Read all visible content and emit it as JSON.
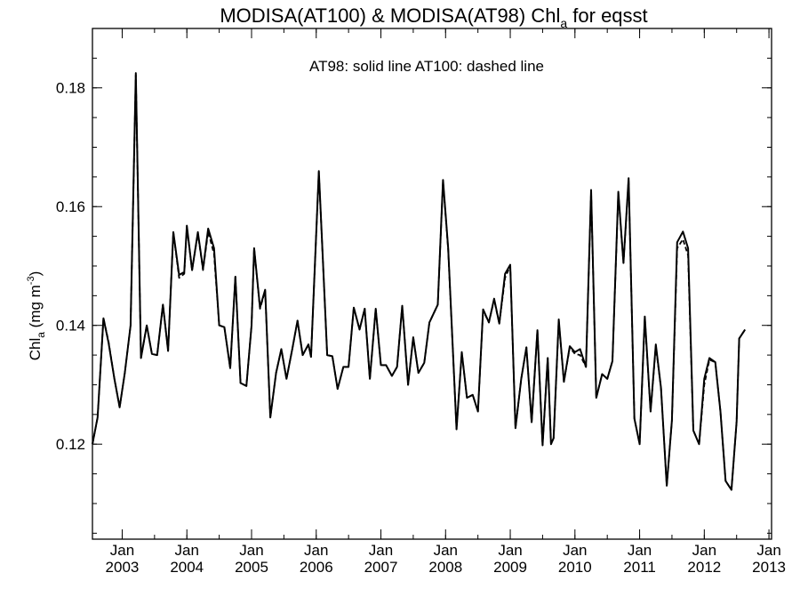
{
  "chart_data": {
    "type": "line",
    "title": {
      "prefix": "MODISA(AT100) & MODISA(AT98)  Chl",
      "sub": "a",
      "suffix": " for eqsst"
    },
    "annotation": "AT98: solid line   AT100: dashed line",
    "ylabel": {
      "main": "Chl",
      "sub": "a",
      "unit": " (mg m",
      "sup": "-3",
      "close": ")"
    },
    "xlabel": "",
    "xlim": [
      2002.54,
      2013.04
    ],
    "ylim": [
      0.104,
      0.19
    ],
    "yticks": [
      0.12,
      0.14,
      0.16,
      0.18
    ],
    "ytick_labels": [
      "0.12",
      "0.14",
      "0.16",
      "0.18"
    ],
    "yminor_step": 0.005,
    "xticks": [
      {
        "x": 2003.0,
        "month": "Jan",
        "year": "2003"
      },
      {
        "x": 2004.0,
        "month": "Jan",
        "year": "2004"
      },
      {
        "x": 2005.0,
        "month": "Jan",
        "year": "2005"
      },
      {
        "x": 2006.0,
        "month": "Jan",
        "year": "2006"
      },
      {
        "x": 2007.0,
        "month": "Jan",
        "year": "2007"
      },
      {
        "x": 2008.0,
        "month": "Jan",
        "year": "2008"
      },
      {
        "x": 2009.0,
        "month": "Jan",
        "year": "2009"
      },
      {
        "x": 2010.0,
        "month": "Jan",
        "year": "2010"
      },
      {
        "x": 2011.0,
        "month": "Jan",
        "year": "2011"
      },
      {
        "x": 2012.0,
        "month": "Jan",
        "year": "2012"
      },
      {
        "x": 2013.0,
        "month": "Jan",
        "year": "2013"
      }
    ],
    "xminor_step": 0.5,
    "series": [
      {
        "name": "AT98",
        "style": "solid",
        "color": "#000000",
        "points": [
          [
            2002.54,
            0.12
          ],
          [
            2002.62,
            0.1245
          ],
          [
            2002.71,
            0.1412
          ],
          [
            2002.79,
            0.137
          ],
          [
            2002.88,
            0.131
          ],
          [
            2002.96,
            0.1262
          ],
          [
            2003.04,
            0.132
          ],
          [
            2003.13,
            0.14
          ],
          [
            2003.21,
            0.1825
          ],
          [
            2003.29,
            0.1345
          ],
          [
            2003.38,
            0.14
          ],
          [
            2003.46,
            0.1352
          ],
          [
            2003.54,
            0.135
          ],
          [
            2003.63,
            0.1435
          ],
          [
            2003.71,
            0.1357
          ],
          [
            2003.79,
            0.1557
          ],
          [
            2003.88,
            0.1485
          ],
          [
            2003.96,
            0.149
          ],
          [
            2004.0,
            0.1568
          ],
          [
            2004.08,
            0.1493
          ],
          [
            2004.17,
            0.1557
          ],
          [
            2004.25,
            0.1495
          ],
          [
            2004.33,
            0.1563
          ],
          [
            2004.42,
            0.153
          ],
          [
            2004.5,
            0.14
          ],
          [
            2004.58,
            0.1397
          ],
          [
            2004.67,
            0.1328
          ],
          [
            2004.75,
            0.1482
          ],
          [
            2004.83,
            0.1303
          ],
          [
            2004.92,
            0.1298
          ],
          [
            2005.0,
            0.14
          ],
          [
            2005.04,
            0.153
          ],
          [
            2005.13,
            0.143
          ],
          [
            2005.21,
            0.146
          ],
          [
            2005.29,
            0.1245
          ],
          [
            2005.38,
            0.132
          ],
          [
            2005.46,
            0.136
          ],
          [
            2005.54,
            0.131
          ],
          [
            2005.63,
            0.136
          ],
          [
            2005.71,
            0.1408
          ],
          [
            2005.79,
            0.135
          ],
          [
            2005.88,
            0.1368
          ],
          [
            2005.92,
            0.1347
          ],
          [
            2006.04,
            0.166
          ],
          [
            2006.17,
            0.135
          ],
          [
            2006.25,
            0.1348
          ],
          [
            2006.33,
            0.1293
          ],
          [
            2006.42,
            0.133
          ],
          [
            2006.5,
            0.133
          ],
          [
            2006.58,
            0.143
          ],
          [
            2006.67,
            0.1393
          ],
          [
            2006.75,
            0.1428
          ],
          [
            2006.83,
            0.131
          ],
          [
            2006.92,
            0.1428
          ],
          [
            2007.0,
            0.1333
          ],
          [
            2007.08,
            0.1333
          ],
          [
            2007.17,
            0.1315
          ],
          [
            2007.25,
            0.133
          ],
          [
            2007.33,
            0.1433
          ],
          [
            2007.42,
            0.13
          ],
          [
            2007.5,
            0.138
          ],
          [
            2007.58,
            0.132
          ],
          [
            2007.67,
            0.1337
          ],
          [
            2007.75,
            0.1405
          ],
          [
            2007.88,
            0.1435
          ],
          [
            2007.96,
            0.1645
          ],
          [
            2008.04,
            0.153
          ],
          [
            2008.17,
            0.1225
          ],
          [
            2008.25,
            0.1355
          ],
          [
            2008.33,
            0.1278
          ],
          [
            2008.42,
            0.1283
          ],
          [
            2008.5,
            0.1255
          ],
          [
            2008.58,
            0.1427
          ],
          [
            2008.67,
            0.1405
          ],
          [
            2008.75,
            0.1445
          ],
          [
            2008.83,
            0.1403
          ],
          [
            2008.92,
            0.1487
          ],
          [
            2009.0,
            0.1502
          ],
          [
            2009.08,
            0.1227
          ],
          [
            2009.17,
            0.131
          ],
          [
            2009.25,
            0.1363
          ],
          [
            2009.33,
            0.1237
          ],
          [
            2009.42,
            0.1392
          ],
          [
            2009.5,
            0.1198
          ],
          [
            2009.58,
            0.1345
          ],
          [
            2009.63,
            0.12
          ],
          [
            2009.67,
            0.121
          ],
          [
            2009.75,
            0.141
          ],
          [
            2009.83,
            0.1305
          ],
          [
            2009.92,
            0.1365
          ],
          [
            2010.0,
            0.1355
          ],
          [
            2010.08,
            0.136
          ],
          [
            2010.17,
            0.133
          ],
          [
            2010.25,
            0.1628
          ],
          [
            2010.33,
            0.1278
          ],
          [
            2010.42,
            0.1318
          ],
          [
            2010.5,
            0.131
          ],
          [
            2010.58,
            0.134
          ],
          [
            2010.67,
            0.1625
          ],
          [
            2010.75,
            0.1505
          ],
          [
            2010.83,
            0.1648
          ],
          [
            2010.92,
            0.1243
          ],
          [
            2011.0,
            0.12
          ],
          [
            2011.08,
            0.1415
          ],
          [
            2011.17,
            0.1255
          ],
          [
            2011.25,
            0.1368
          ],
          [
            2011.33,
            0.1295
          ],
          [
            2011.42,
            0.113
          ],
          [
            2011.5,
            0.124
          ],
          [
            2011.58,
            0.154
          ],
          [
            2011.67,
            0.1558
          ],
          [
            2011.75,
            0.153
          ],
          [
            2011.83,
            0.1223
          ],
          [
            2011.92,
            0.12
          ],
          [
            2012.0,
            0.131
          ],
          [
            2012.08,
            0.1345
          ],
          [
            2012.17,
            0.1338
          ],
          [
            2012.25,
            0.1255
          ],
          [
            2012.33,
            0.1138
          ],
          [
            2012.42,
            0.1123
          ],
          [
            2012.5,
            0.1238
          ],
          [
            2012.54,
            0.1378
          ],
          [
            2012.63,
            0.1393
          ]
        ]
      },
      {
        "name": "AT100",
        "style": "dashed",
        "color": "#000000",
        "points": [
          [
            2002.54,
            0.12
          ],
          [
            2002.62,
            0.1245
          ],
          [
            2002.71,
            0.1412
          ],
          [
            2002.79,
            0.1372
          ],
          [
            2002.88,
            0.131
          ],
          [
            2002.96,
            0.1262
          ],
          [
            2003.04,
            0.132
          ],
          [
            2003.13,
            0.14
          ],
          [
            2003.21,
            0.1822
          ],
          [
            2003.29,
            0.1345
          ],
          [
            2003.38,
            0.14
          ],
          [
            2003.46,
            0.1352
          ],
          [
            2003.54,
            0.135
          ],
          [
            2003.63,
            0.1435
          ],
          [
            2003.71,
            0.1357
          ],
          [
            2003.79,
            0.1557
          ],
          [
            2003.88,
            0.148
          ],
          [
            2003.96,
            0.1487
          ],
          [
            2004.0,
            0.1565
          ],
          [
            2004.08,
            0.1493
          ],
          [
            2004.17,
            0.1555
          ],
          [
            2004.25,
            0.1493
          ],
          [
            2004.33,
            0.1558
          ],
          [
            2004.42,
            0.152
          ],
          [
            2004.5,
            0.14
          ],
          [
            2004.58,
            0.1397
          ],
          [
            2004.67,
            0.1328
          ],
          [
            2004.75,
            0.1482
          ],
          [
            2004.83,
            0.1303
          ],
          [
            2004.92,
            0.1298
          ],
          [
            2005.0,
            0.14
          ],
          [
            2005.04,
            0.153
          ],
          [
            2005.13,
            0.1428
          ],
          [
            2005.21,
            0.1458
          ],
          [
            2005.29,
            0.1245
          ],
          [
            2005.38,
            0.132
          ],
          [
            2005.46,
            0.136
          ],
          [
            2005.54,
            0.131
          ],
          [
            2005.63,
            0.136
          ],
          [
            2005.71,
            0.1408
          ],
          [
            2005.79,
            0.135
          ],
          [
            2005.88,
            0.1368
          ],
          [
            2005.92,
            0.1347
          ],
          [
            2006.04,
            0.1658
          ],
          [
            2006.17,
            0.135
          ],
          [
            2006.25,
            0.1348
          ],
          [
            2006.33,
            0.1293
          ],
          [
            2006.42,
            0.133
          ],
          [
            2006.5,
            0.133
          ],
          [
            2006.58,
            0.143
          ],
          [
            2006.67,
            0.1393
          ],
          [
            2006.75,
            0.1428
          ],
          [
            2006.83,
            0.131
          ],
          [
            2006.92,
            0.1428
          ],
          [
            2007.0,
            0.1333
          ],
          [
            2007.08,
            0.1333
          ],
          [
            2007.17,
            0.1315
          ],
          [
            2007.25,
            0.133
          ],
          [
            2007.33,
            0.1433
          ],
          [
            2007.42,
            0.13
          ],
          [
            2007.5,
            0.138
          ],
          [
            2007.58,
            0.132
          ],
          [
            2007.67,
            0.1337
          ],
          [
            2007.75,
            0.1405
          ],
          [
            2007.88,
            0.1435
          ],
          [
            2007.96,
            0.1642
          ],
          [
            2008.04,
            0.1528
          ],
          [
            2008.17,
            0.1225
          ],
          [
            2008.25,
            0.1355
          ],
          [
            2008.33,
            0.1278
          ],
          [
            2008.42,
            0.1283
          ],
          [
            2008.5,
            0.1255
          ],
          [
            2008.58,
            0.1425
          ],
          [
            2008.67,
            0.1405
          ],
          [
            2008.75,
            0.1443
          ],
          [
            2008.83,
            0.1403
          ],
          [
            2008.92,
            0.148
          ],
          [
            2009.0,
            0.15
          ],
          [
            2009.08,
            0.1227
          ],
          [
            2009.17,
            0.131
          ],
          [
            2009.25,
            0.1363
          ],
          [
            2009.33,
            0.1237
          ],
          [
            2009.42,
            0.1392
          ],
          [
            2009.5,
            0.1198
          ],
          [
            2009.58,
            0.1345
          ],
          [
            2009.63,
            0.12
          ],
          [
            2009.67,
            0.121
          ],
          [
            2009.75,
            0.1408
          ],
          [
            2009.83,
            0.1305
          ],
          [
            2009.92,
            0.1363
          ],
          [
            2010.0,
            0.1352
          ],
          [
            2010.08,
            0.135
          ],
          [
            2010.17,
            0.133
          ],
          [
            2010.25,
            0.1625
          ],
          [
            2010.33,
            0.1278
          ],
          [
            2010.42,
            0.1318
          ],
          [
            2010.5,
            0.131
          ],
          [
            2010.58,
            0.134
          ],
          [
            2010.67,
            0.1622
          ],
          [
            2010.75,
            0.1505
          ],
          [
            2010.83,
            0.1645
          ],
          [
            2010.92,
            0.1243
          ],
          [
            2011.0,
            0.12
          ],
          [
            2011.08,
            0.1413
          ],
          [
            2011.17,
            0.1255
          ],
          [
            2011.25,
            0.1365
          ],
          [
            2011.33,
            0.1295
          ],
          [
            2011.42,
            0.113
          ],
          [
            2011.5,
            0.124
          ],
          [
            2011.58,
            0.153
          ],
          [
            2011.67,
            0.1545
          ],
          [
            2011.75,
            0.1518
          ],
          [
            2011.83,
            0.1223
          ],
          [
            2011.92,
            0.12
          ],
          [
            2012.0,
            0.13
          ],
          [
            2012.08,
            0.1342
          ],
          [
            2012.17,
            0.1338
          ],
          [
            2012.25,
            0.1255
          ],
          [
            2012.33,
            0.1138
          ],
          [
            2012.42,
            0.1123
          ],
          [
            2012.5,
            0.1238
          ],
          [
            2012.54,
            0.1378
          ],
          [
            2012.63,
            0.1393
          ]
        ]
      }
    ],
    "grid": false,
    "legend": "none"
  }
}
